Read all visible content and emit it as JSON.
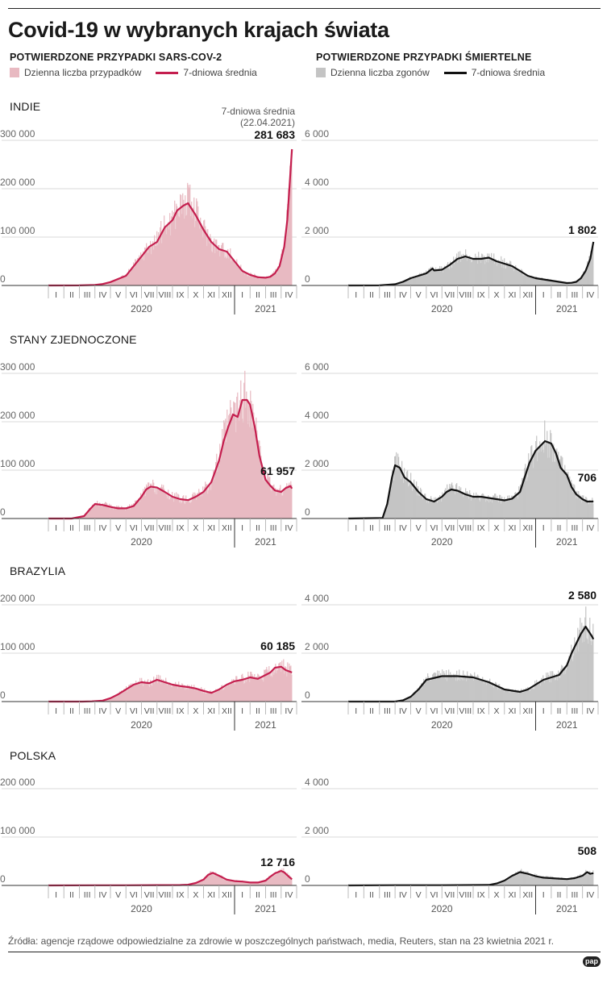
{
  "title": "Covid-19 w wybranych krajach świata",
  "sections": {
    "cases": {
      "heading": "POTWIERDZONE PRZYPADKI SARS-COV-2",
      "legend_bar": "Dzienna liczba przypadków",
      "legend_line": "7-dniowa średnia",
      "bar_color": "#e8b9c1",
      "line_color": "#c41e4e"
    },
    "deaths": {
      "heading": "POTWIERDZONE PRZYPADKI ŚMIERTELNE",
      "legend_bar": "Dzienna liczba zgonów",
      "legend_line": "7-dniowa średnia",
      "bar_color": "#c4c4c4",
      "line_color": "#111111"
    }
  },
  "countries": {
    "india": "INDIE",
    "usa": "STANY ZJEDNOCZONE",
    "brazil": "BRAZYLIA",
    "poland": "POLSKA"
  },
  "annotation": {
    "line1": "7-dniowa średnia",
    "line2": "(22.04.2021)"
  },
  "months": [
    "I",
    "II",
    "III",
    "IV",
    "V",
    "VI",
    "VII",
    "VIII",
    "IX",
    "X",
    "XI",
    "XII",
    "I",
    "II",
    "III",
    "IV"
  ],
  "years": [
    "2020",
    "2021"
  ],
  "source": "Źródła: agencje rządowe odpowiedzialne za zdrowie w poszczególnych państwach, media, Reuters, stan na 23 kwietnia 2021 r.",
  "logo": "pap",
  "chart_data": [
    {
      "type": "area",
      "id": "india-cases",
      "title": "INDIE",
      "metric": "Potwierdzone przypadki SARS-COV-2",
      "ylim": [
        0,
        300000
      ],
      "yticks": [
        0,
        100000,
        200000,
        300000
      ],
      "ytick_labels": [
        "0",
        "100 000",
        "200 000",
        "300 000"
      ],
      "x": [
        0,
        2,
        3,
        3.5,
        4,
        5,
        6,
        6.5,
        7,
        7.5,
        8,
        8.3,
        8.7,
        9,
        9.5,
        10,
        10.5,
        11,
        11.5,
        12,
        12.5,
        13,
        13.5,
        14,
        14.3,
        14.6,
        14.9,
        15.2,
        15.4,
        15.7
      ],
      "values": [
        0,
        100,
        1000,
        3000,
        7000,
        20000,
        60000,
        80000,
        90000,
        120000,
        135000,
        155000,
        165000,
        170000,
        145000,
        115000,
        90000,
        75000,
        70000,
        50000,
        30000,
        22000,
        17000,
        16000,
        18000,
        25000,
        40000,
        80000,
        135000,
        281683
      ],
      "final_label": "281 683"
    },
    {
      "type": "area",
      "id": "india-deaths",
      "title": "INDIE",
      "metric": "Potwierdzone przypadki śmiertelne",
      "ylim": [
        0,
        6000
      ],
      "yticks": [
        0,
        2000,
        4000,
        6000
      ],
      "ytick_labels": [
        "0",
        "2 000",
        "4 000",
        "6 000"
      ],
      "x": [
        0,
        2,
        3,
        3.5,
        4,
        5,
        5.4,
        5.5,
        6,
        6.5,
        7,
        7.5,
        8,
        8.5,
        9,
        9.5,
        10,
        10.5,
        11,
        11.5,
        12,
        12.5,
        13,
        13.5,
        14,
        14.3,
        14.6,
        14.9,
        15.2,
        15.5,
        15.7
      ],
      "values": [
        0,
        5,
        50,
        150,
        300,
        500,
        700,
        620,
        650,
        850,
        1100,
        1200,
        1100,
        1100,
        1150,
        1000,
        900,
        800,
        600,
        400,
        300,
        250,
        200,
        150,
        100,
        110,
        150,
        300,
        600,
        1100,
        1802
      ],
      "final_label": "1 802"
    },
    {
      "type": "area",
      "id": "usa-cases",
      "title": "STANY ZJEDNOCZONE",
      "metric": "Potwierdzone przypadki SARS-COV-2",
      "ylim": [
        0,
        300000
      ],
      "yticks": [
        0,
        100000,
        200000,
        300000
      ],
      "ytick_labels": [
        "0",
        "100 000",
        "200 000",
        "300 000"
      ],
      "x": [
        0,
        1.5,
        2.3,
        2.7,
        3,
        3.5,
        4,
        4.5,
        5,
        5.5,
        6,
        6.3,
        6.6,
        7,
        7.5,
        8,
        8.5,
        9,
        9.5,
        10,
        10.5,
        11,
        11.3,
        11.6,
        11.9,
        12.2,
        12.5,
        12.8,
        13,
        13.3,
        13.6,
        14,
        14.3,
        14.6,
        15,
        15.3,
        15.6,
        15.7
      ],
      "values": [
        0,
        0,
        5000,
        20000,
        30000,
        28000,
        24000,
        21000,
        21000,
        26000,
        45000,
        60000,
        66000,
        64000,
        55000,
        45000,
        40000,
        38000,
        45000,
        55000,
        75000,
        120000,
        160000,
        190000,
        215000,
        210000,
        245000,
        245000,
        235000,
        190000,
        130000,
        80000,
        68000,
        58000,
        55000,
        63000,
        67000,
        61957
      ],
      "final_label": "61 957"
    },
    {
      "type": "area",
      "id": "usa-deaths",
      "title": "STANY ZJEDNOCZONE",
      "metric": "Potwierdzone przypadki śmiertelne",
      "ylim": [
        0,
        6000
      ],
      "yticks": [
        0,
        2000,
        4000,
        6000
      ],
      "ytick_labels": [
        "0",
        "2 000",
        "4 000",
        "6 000"
      ],
      "x": [
        0,
        2.2,
        2.5,
        2.8,
        3,
        3.3,
        3.6,
        4,
        4.5,
        5,
        5.5,
        6,
        6.3,
        6.6,
        7,
        7.5,
        8,
        8.5,
        9,
        9.5,
        10,
        10.5,
        11,
        11.3,
        11.6,
        12,
        12.3,
        12.6,
        13,
        13.3,
        13.6,
        14,
        14.3,
        14.6,
        15,
        15.3,
        15.7
      ],
      "values": [
        0,
        20,
        600,
        1700,
        2200,
        2100,
        1700,
        1500,
        1100,
        800,
        700,
        900,
        1100,
        1200,
        1150,
        1000,
        900,
        900,
        850,
        800,
        750,
        820,
        1100,
        1700,
        2300,
        2800,
        3000,
        3200,
        3100,
        2700,
        2100,
        1800,
        1300,
        1000,
        800,
        700,
        706
      ],
      "final_label": "706"
    },
    {
      "type": "area",
      "id": "brazil-cases",
      "title": "BRAZYLIA",
      "metric": "Potwierdzone przypadki SARS-COV-2",
      "ylim": [
        0,
        200000
      ],
      "yticks": [
        0,
        100000,
        200000
      ],
      "ytick_labels": [
        "0",
        "100 000",
        "200 000"
      ],
      "x": [
        0,
        2.2,
        2.8,
        3.5,
        4,
        4.5,
        5,
        5.5,
        6,
        6.5,
        7,
        7.5,
        8,
        8.5,
        9,
        9.5,
        10,
        10.5,
        11,
        11.5,
        12,
        12.5,
        13,
        13.5,
        14,
        14.3,
        14.6,
        15,
        15.3,
        15.7
      ],
      "values": [
        0,
        0,
        500,
        2000,
        7000,
        15000,
        25000,
        35000,
        40000,
        38000,
        45000,
        40000,
        35000,
        32000,
        30000,
        27000,
        22000,
        18000,
        25000,
        35000,
        42000,
        45000,
        50000,
        47000,
        55000,
        60000,
        70000,
        72000,
        65000,
        60185
      ],
      "final_label": "60 185"
    },
    {
      "type": "area",
      "id": "brazil-deaths",
      "title": "BRAZYLIA",
      "metric": "Potwierdzone przypadki śmiertelne",
      "ylim": [
        0,
        4000
      ],
      "yticks": [
        0,
        2000,
        4000
      ],
      "ytick_labels": [
        "0",
        "2 000",
        "4 000"
      ],
      "x": [
        0,
        3,
        3.5,
        4,
        4.5,
        5,
        6,
        7,
        8,
        8.5,
        9,
        9.5,
        10,
        10.5,
        11,
        11.5,
        12,
        12.5,
        13,
        13.5,
        14,
        14.3,
        14.6,
        14.9,
        15.2,
        15.4,
        15.6,
        15.7
      ],
      "values": [
        0,
        0,
        50,
        200,
        500,
        900,
        1050,
        1050,
        1000,
        900,
        800,
        650,
        500,
        450,
        400,
        500,
        700,
        900,
        1000,
        1100,
        1500,
        2000,
        2400,
        2800,
        3100,
        2900,
        2700,
        2580
      ],
      "final_label": "2 580"
    },
    {
      "type": "area",
      "id": "poland-cases",
      "title": "POLSKA",
      "metric": "Potwierdzone przypadki SARS-COV-2",
      "ylim": [
        0,
        200000
      ],
      "yticks": [
        0,
        100000,
        200000
      ],
      "ytick_labels": [
        "0",
        "100 000",
        "200 000"
      ],
      "x": [
        0,
        3,
        5,
        7,
        8.5,
        9,
        9.5,
        10,
        10.3,
        10.6,
        11,
        11.5,
        12,
        12.5,
        13,
        13.5,
        14,
        14.3,
        14.6,
        15,
        15.2,
        15.5,
        15.7
      ],
      "values": [
        0,
        300,
        400,
        600,
        800,
        1500,
        5000,
        12000,
        22000,
        26000,
        20000,
        12000,
        9000,
        8000,
        6000,
        6000,
        10000,
        18000,
        25000,
        30000,
        27000,
        18000,
        12716
      ],
      "final_label": "12 716"
    },
    {
      "type": "area",
      "id": "poland-deaths",
      "title": "POLSKA",
      "metric": "Potwierdzone przypadki śmiertelne",
      "ylim": [
        0,
        4000
      ],
      "yticks": [
        0,
        2000,
        4000
      ],
      "ytick_labels": [
        "0",
        "2 000",
        "4 000"
      ],
      "x": [
        0,
        3,
        6,
        9,
        9.5,
        10,
        10.5,
        11,
        11.5,
        12,
        12.5,
        13,
        13.5,
        14,
        14.5,
        15,
        15.3,
        15.5,
        15.7
      ],
      "values": [
        0,
        10,
        10,
        20,
        80,
        200,
        400,
        550,
        480,
        380,
        320,
        300,
        280,
        260,
        300,
        400,
        550,
        480,
        508
      ],
      "final_label": "508"
    }
  ]
}
